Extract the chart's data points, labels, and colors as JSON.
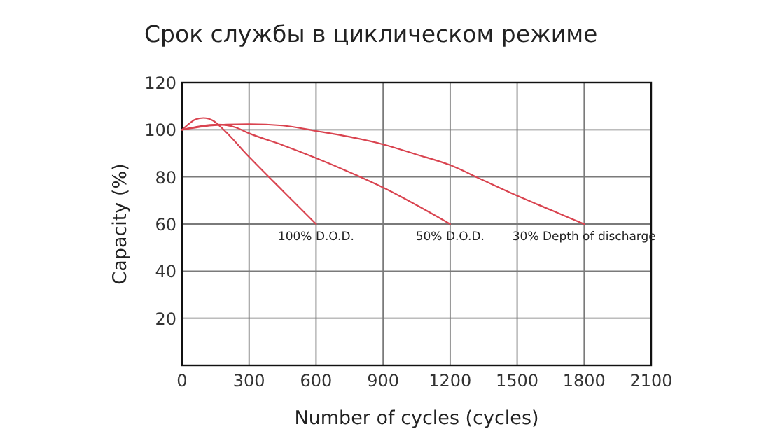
{
  "chart_data": {
    "type": "line",
    "title": "Срок службы в циклическом режиме",
    "xlabel": "Number of cycles (cycles)",
    "ylabel": "Capacity (%)",
    "xlim": [
      0,
      2100
    ],
    "ylim": [
      0,
      120
    ],
    "xticks": [
      0,
      300,
      600,
      900,
      1200,
      1500,
      1800,
      2100
    ],
    "yticks": [
      20,
      40,
      60,
      80,
      100,
      120
    ],
    "grid": true,
    "series": [
      {
        "name": "100% D.O.D.",
        "color": "#d9434f",
        "x": [
          0,
          40,
          60,
          96,
          140,
          173,
          300,
          450,
          600
        ],
        "values": [
          100,
          103.2,
          104.4,
          105,
          103.8,
          101.2,
          88.5,
          74.2,
          60
        ]
      },
      {
        "name": "50% D.O.D.",
        "color": "#d9434f",
        "x": [
          0,
          80,
          160,
          240,
          300,
          450,
          600,
          750,
          900,
          1050,
          1200
        ],
        "values": [
          100,
          101.5,
          102.2,
          101,
          98.5,
          93.5,
          88,
          82,
          75.5,
          68,
          60
        ]
      },
      {
        "name": "30% Depth of discharge",
        "color": "#d9434f",
        "x": [
          0,
          100,
          200,
          300,
          450,
          600,
          750,
          900,
          1050,
          1200,
          1350,
          1500,
          1650,
          1800
        ],
        "values": [
          100,
          101.5,
          102.2,
          102.4,
          101.8,
          99.5,
          97,
          93.8,
          89.5,
          85,
          78.5,
          72,
          66,
          60
        ]
      }
    ]
  }
}
